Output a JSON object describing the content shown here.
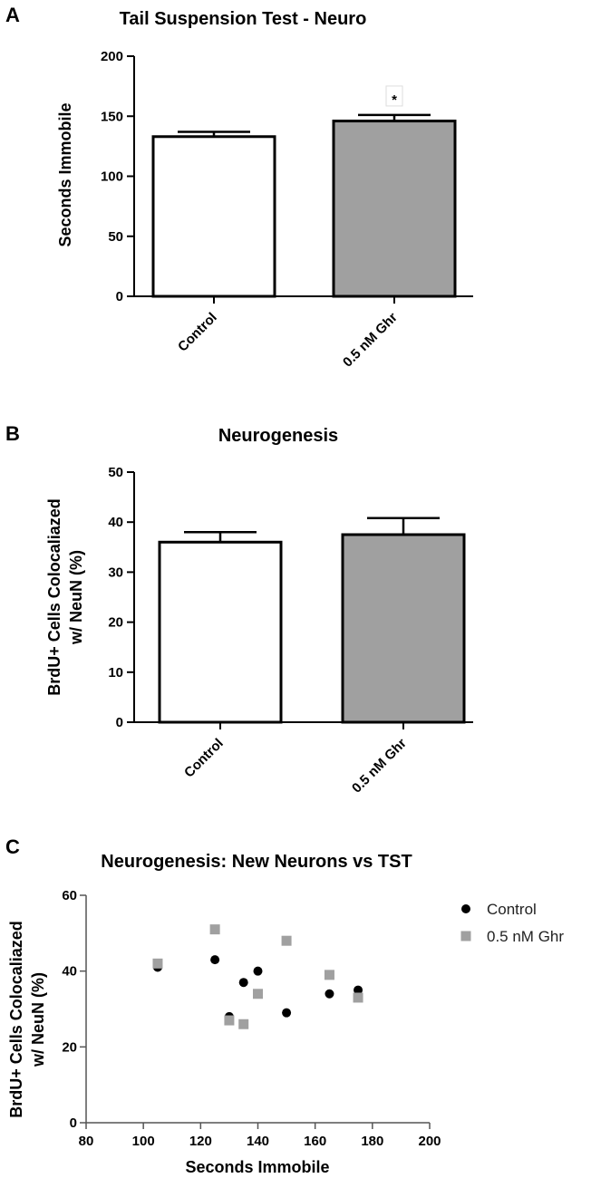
{
  "panels": {
    "a": {
      "letter": "A"
    },
    "b": {
      "letter": "B"
    },
    "c": {
      "letter": "C"
    }
  },
  "colors": {
    "control_fill": "#ffffff",
    "treatment_fill": "#a0a0a0",
    "control_marker": "#000000",
    "treatment_marker": "#a0a0a0"
  },
  "chart_data": [
    {
      "type": "bar",
      "title": "Tail Suspension Test - Neuro",
      "xlabel": "",
      "ylabel": "Seconds Immobile",
      "categories": [
        "Control",
        "0.5 nM Ghr"
      ],
      "values": [
        133,
        146
      ],
      "error": [
        4,
        5
      ],
      "ylim": [
        0,
        200
      ],
      "yticks": [
        0,
        50,
        100,
        150,
        200
      ],
      "annotations": [
        {
          "category": "0.5 nM Ghr",
          "text": "*"
        }
      ],
      "grid": false
    },
    {
      "type": "bar",
      "title": "Neurogenesis",
      "xlabel": "",
      "ylabel": "BrdU+ Cells Colocaliazed w/ NeuN (%)",
      "ylabel_lines": [
        "BrdU+ Cells Colocaliazed",
        "w/ NeuN (%)"
      ],
      "categories": [
        "Control",
        "0.5 nM Ghr"
      ],
      "values": [
        36,
        37.5
      ],
      "error": [
        2,
        3.3
      ],
      "ylim": [
        0,
        50
      ],
      "yticks": [
        0,
        10,
        20,
        30,
        40,
        50
      ],
      "grid": false
    },
    {
      "type": "scatter",
      "title": "Neurogenesis: New Neurons vs TST",
      "xlabel": "Seconds Immobile",
      "ylabel": "BrdU+ Cells Colocaliazed w/ NeuN (%)",
      "ylabel_lines": [
        "BrdU+ Cells Colocaliazed",
        "w/ NeuN (%)"
      ],
      "xlim": [
        80,
        200
      ],
      "ylim": [
        0,
        60
      ],
      "xticks": [
        80,
        100,
        120,
        140,
        160,
        180,
        200
      ],
      "yticks": [
        0,
        20,
        40,
        60
      ],
      "legend_position": "top-right",
      "grid": false,
      "series": [
        {
          "name": "Control",
          "marker": "circle",
          "points": [
            [
              105,
              41
            ],
            [
              125,
              43
            ],
            [
              130,
              28
            ],
            [
              135,
              37
            ],
            [
              140,
              40
            ],
            [
              150,
              29
            ],
            [
              165,
              34
            ],
            [
              175,
              35
            ]
          ]
        },
        {
          "name": "0.5 nM Ghr",
          "marker": "square",
          "points": [
            [
              105,
              42
            ],
            [
              125,
              51
            ],
            [
              130,
              27
            ],
            [
              135,
              26
            ],
            [
              140,
              34
            ],
            [
              150,
              48
            ],
            [
              165,
              39
            ],
            [
              175,
              33
            ]
          ]
        }
      ]
    }
  ]
}
